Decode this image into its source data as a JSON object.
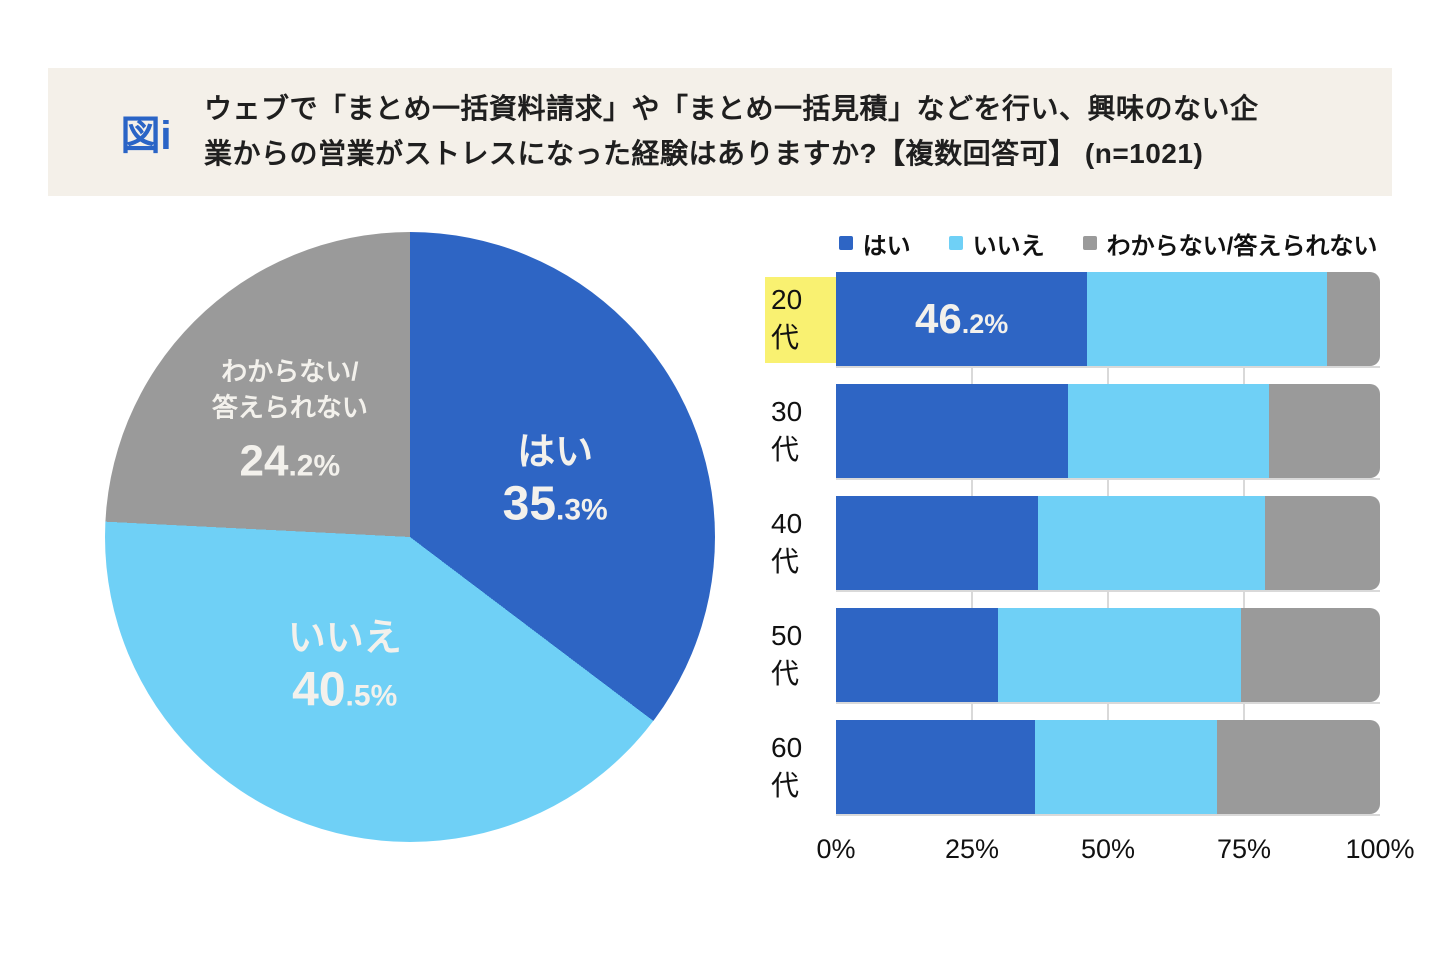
{
  "header": {
    "figure_label": "図i",
    "title": "ウェブで「まとめ一括資料請求」や「まとめ一括見積」などを行い、興味のない企\n業からの営業がストレスになった経験はありますか?【複数回答可】 (n=1021)"
  },
  "colors": {
    "header_background": "#f4f0e9",
    "figure_label_blue": "#2a64c6",
    "yes_blue": "#2e65c4",
    "no_light_blue": "#6fd0f6",
    "unknown_gray": "#9a9a9a",
    "highlight_yellow": "#f9f171",
    "on_slice_text": "#f3f1ec",
    "gridline": "#d9d9d9"
  },
  "chart_data": [
    {
      "type": "pie",
      "labels": [
        "はい",
        "いいえ",
        "わからない/答えられない"
      ],
      "values": [
        35.3,
        40.5,
        24.2
      ],
      "unit": "%",
      "colors": [
        "#2e65c4",
        "#6fd0f6",
        "#9a9a9a"
      ],
      "start_angle_deg": 0,
      "direction": "clockwise",
      "labels_on_slices": true
    },
    {
      "type": "bar",
      "orientation": "horizontal-stacked",
      "categories": [
        "20代",
        "30代",
        "40代",
        "50代",
        "60代"
      ],
      "series": [
        {
          "name": "はい",
          "color": "#2e65c4",
          "values": [
            46.2,
            42.6,
            37.1,
            29.7,
            36.5
          ]
        },
        {
          "name": "いいえ",
          "color": "#6fd0f6",
          "values": [
            44.1,
            37.0,
            41.8,
            44.7,
            33.5
          ]
        },
        {
          "name": "わからない/答えられない",
          "color": "#9a9a9a",
          "values": [
            9.7,
            20.4,
            21.1,
            25.6,
            30.0
          ]
        }
      ],
      "xlim": [
        0,
        100
      ],
      "x_ticks": [
        "0%",
        "25%",
        "50%",
        "75%",
        "100%"
      ],
      "gridlines_pct": [
        25,
        50,
        75
      ],
      "legend_position": "top",
      "highlighted_category": "20代",
      "highlight_color": "#f9f171",
      "value_labels": [
        {
          "category": "20代",
          "series": "はい",
          "text": "46.2%"
        }
      ]
    }
  ]
}
